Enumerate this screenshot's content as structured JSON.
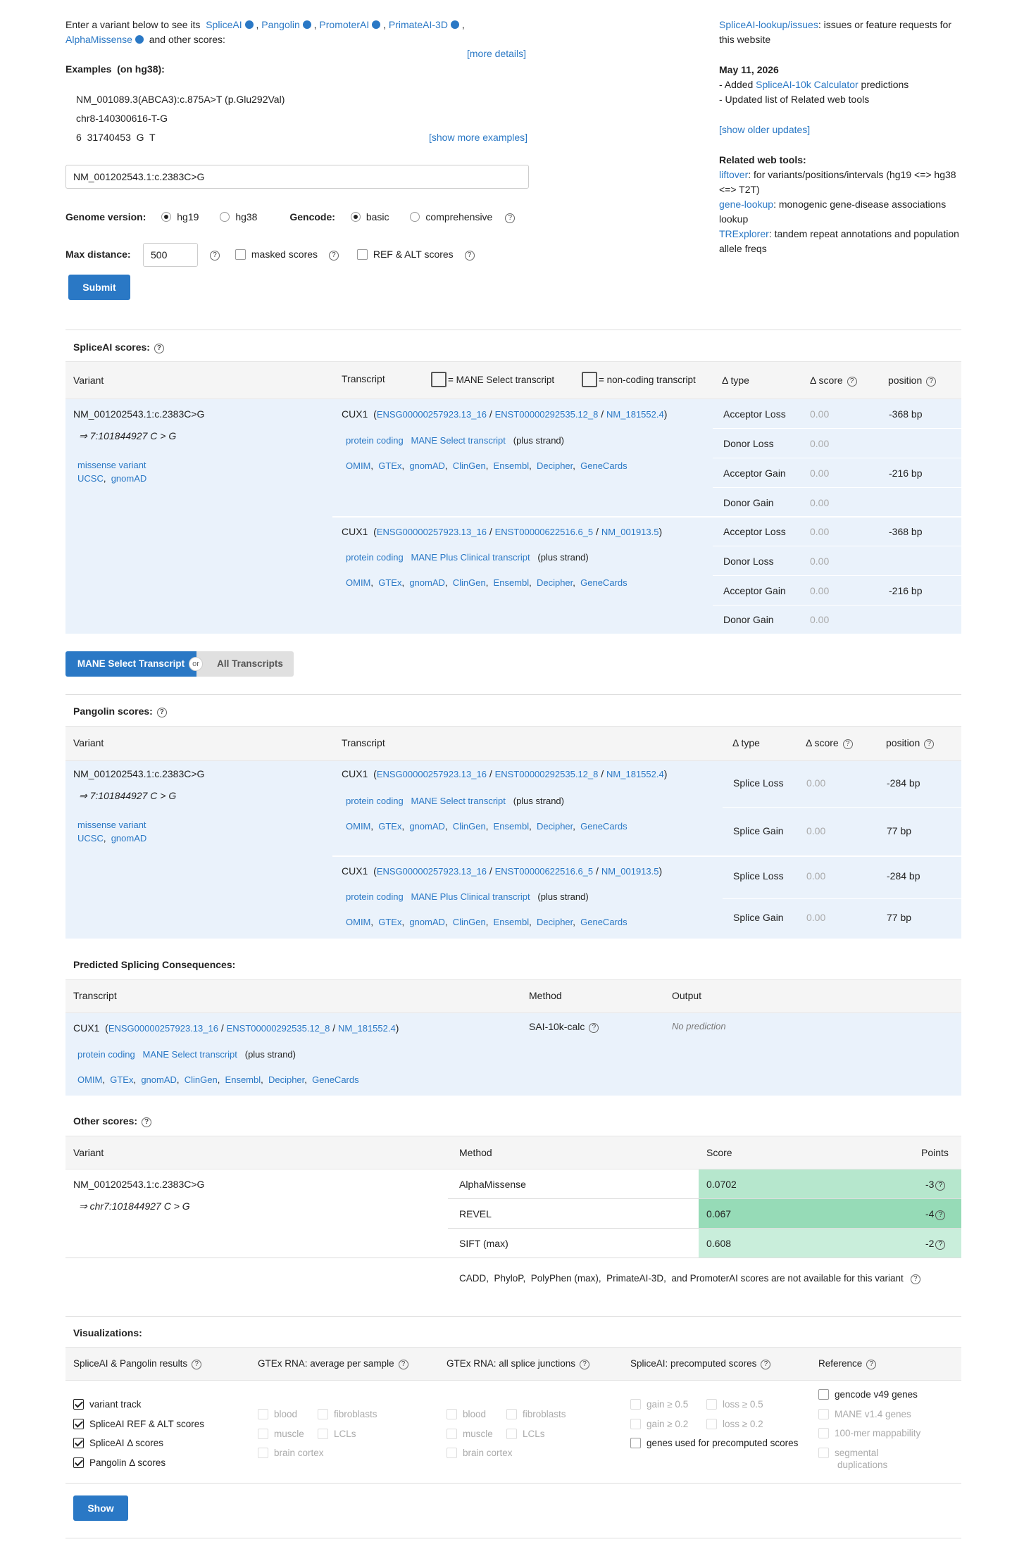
{
  "intro": {
    "prefix": "Enter a variant below to see its",
    "tools": [
      "SpliceAI",
      "Pangolin",
      "PromoterAI",
      "PrimateAI-3D",
      "AlphaMissense"
    ],
    "suffix": "and other scores:",
    "more_details": "[more details]"
  },
  "examples": {
    "title": "Examples",
    "subtitle": "(on hg38):",
    "items": [
      "NM_001089.3(ABCA3):c.875A>T (p.Glu292Val)",
      "chr8-140300616-T-G",
      "6  31740453  G  T"
    ],
    "show_more": "[show more examples]"
  },
  "search": {
    "value": "NM_001202543.1:c.2383C>G"
  },
  "options": {
    "genome_label": "Genome version:",
    "genome_options": [
      "hg19",
      "hg38"
    ],
    "gencode_label": "Gencode:",
    "gencode_options": [
      "basic",
      "comprehensive"
    ],
    "maxdist_label": "Max distance:",
    "maxdist_value": "500",
    "masked": "masked scores",
    "refalt": "REF & ALT scores",
    "submit": "Submit"
  },
  "sidebar": {
    "issues_link": "SpliceAI-lookup/issues",
    "issues_text": ": issues or feature requests for this website",
    "date": "May 11, 2026",
    "upd1_prefix": "- Added ",
    "upd1_link": "SpliceAI-10k Calculator",
    "upd1_suffix": " predictions",
    "upd2": "- Updated list of Related web tools",
    "show_older": "[show older updates]",
    "related_title": "Related web tools:",
    "tools": [
      {
        "link": "liftover",
        "text": ": for variants/positions/intervals (hg19 <=> hg38 <=> T2T)"
      },
      {
        "link": "gene-lookup",
        "text": ": monogenic gene-disease associations lookup"
      },
      {
        "link": "TRExplorer",
        "text": ": tandem repeat annotations and population allele freqs"
      }
    ]
  },
  "spliceai": {
    "title": "SpliceAI scores:",
    "headers": {
      "variant": "Variant",
      "transcript": "Transcript",
      "mane_legend": "= MANE Select transcript",
      "noncoding_legend": "= non-coding transcript",
      "dtype": "Δ type",
      "dscore": "Δ score",
      "position": "position"
    },
    "variant": "NM_001202543.1:c.2383C>G",
    "variant_arrow": "⇒ 7:101844927 C > G",
    "consequence": "missense variant",
    "ucsc": "UCSC",
    "gnomad": "gnomAD",
    "transcripts": [
      {
        "gene": "CUX1",
        "ensg": "ENSG00000257923.13_16",
        "enst": "ENST00000292535.12_8",
        "nm": "NM_181552.4",
        "biotype": "protein coding",
        "tag": "MANE Select transcript",
        "strand": "(plus strand)",
        "rows": [
          {
            "type": "Acceptor Loss",
            "score": "0.00",
            "pos": "-368 bp"
          },
          {
            "type": "Donor Loss",
            "score": "0.00",
            "pos": ""
          },
          {
            "type": "Acceptor Gain",
            "score": "0.00",
            "pos": "-216 bp"
          },
          {
            "type": "Donor Gain",
            "score": "0.00",
            "pos": ""
          }
        ]
      },
      {
        "gene": "CUX1",
        "ensg": "ENSG00000257923.13_16",
        "enst": "ENST00000622516.6_5",
        "nm": "NM_001913.5",
        "biotype": "protein coding",
        "tag": "MANE Plus Clinical transcript",
        "strand": "(plus strand)",
        "rows": [
          {
            "type": "Acceptor Loss",
            "score": "0.00",
            "pos": "-368 bp"
          },
          {
            "type": "Donor Loss",
            "score": "0.00",
            "pos": ""
          },
          {
            "type": "Acceptor Gain",
            "score": "0.00",
            "pos": "-216 bp"
          },
          {
            "type": "Donor Gain",
            "score": "0.00",
            "pos": ""
          }
        ]
      }
    ],
    "links": [
      "OMIM",
      "GTEx",
      "gnomAD",
      "ClinGen",
      "Ensembl",
      "Decipher",
      "GeneCards"
    ]
  },
  "toggle": {
    "mane": "MANE Select Transcript",
    "or": "or",
    "all": "All Transcripts"
  },
  "pangolin": {
    "title": "Pangolin scores:",
    "headers": {
      "variant": "Variant",
      "transcript": "Transcript",
      "dtype": "Δ type",
      "dscore": "Δ score",
      "position": "position"
    },
    "transcripts": [
      {
        "gene": "CUX1",
        "ensg": "ENSG00000257923.13_16",
        "enst": "ENST00000292535.12_8",
        "nm": "NM_181552.4",
        "biotype": "protein coding",
        "tag": "MANE Select transcript",
        "strand": "(plus strand)",
        "rows": [
          {
            "type": "Splice Loss",
            "score": "0.00",
            "pos": "-284 bp"
          },
          {
            "type": "Splice Gain",
            "score": "0.00",
            "pos": "77 bp"
          }
        ]
      },
      {
        "gene": "CUX1",
        "ensg": "ENSG00000257923.13_16",
        "enst": "ENST00000622516.6_5",
        "nm": "NM_001913.5",
        "biotype": "protein coding",
        "tag": "MANE Plus Clinical transcript",
        "strand": "(plus strand)",
        "rows": [
          {
            "type": "Splice Loss",
            "score": "0.00",
            "pos": "-284 bp"
          },
          {
            "type": "Splice Gain",
            "score": "0.00",
            "pos": "77 bp"
          }
        ]
      }
    ]
  },
  "consequences": {
    "title": "Predicted Splicing Consequences:",
    "headers": {
      "transcript": "Transcript",
      "method": "Method",
      "output": "Output"
    },
    "gene": "CUX1",
    "ensg": "ENSG00000257923.13_16",
    "enst": "ENST00000292535.12_8",
    "nm": "NM_181552.4",
    "biotype": "protein coding",
    "tag": "MANE Select transcript",
    "strand": "(plus strand)",
    "method": "SAI-10k-calc",
    "output": "No prediction"
  },
  "other": {
    "title": "Other scores:",
    "headers": {
      "variant": "Variant",
      "method": "Method",
      "score": "Score",
      "points": "Points"
    },
    "variant": "NM_001202543.1:c.2383C>G",
    "variant_arrow": "⇒ chr7:101844927 C > G",
    "rows": [
      {
        "method": "AlphaMissense",
        "score": "0.0702",
        "points": "-3",
        "color": "#b6e7cd"
      },
      {
        "method": "REVEL",
        "score": "0.067",
        "points": "-4",
        "color": "#96dbb7"
      },
      {
        "method": "SIFT (max)",
        "score": "0.608",
        "points": "-2",
        "color": "#c9eedb"
      }
    ],
    "note": "CADD,  PhyloP,  PolyPhen (max),  PrimateAI-3D,  and PromoterAI scores are not available for this variant"
  },
  "viz": {
    "title": "Visualizations:",
    "headers": [
      "SpliceAI & Pangolin results",
      "GTEx RNA: average per sample",
      "GTEx RNA: all splice junctions",
      "SpliceAI: precomputed scores",
      "Reference"
    ],
    "col1": [
      "variant track",
      "SpliceAI REF & ALT scores",
      "SpliceAI Δ  scores",
      "Pangolin Δ  scores"
    ],
    "gtex_avg": [
      "blood",
      "fibroblasts",
      "muscle",
      "LCLs",
      "brain cortex"
    ],
    "gtex_junc": [
      "blood",
      "fibroblasts",
      "muscle",
      "LCLs",
      "brain cortex"
    ],
    "precomp": [
      "gain ≥ 0.5",
      "loss ≥ 0.5",
      "gain ≥ 0.2",
      "loss ≥ 0.2",
      "genes used for precomputed scores"
    ],
    "reference": [
      "gencode v49 genes",
      "MANE v1.4 genes",
      "100-mer mappability",
      "segmental duplications"
    ],
    "show": "Show"
  }
}
